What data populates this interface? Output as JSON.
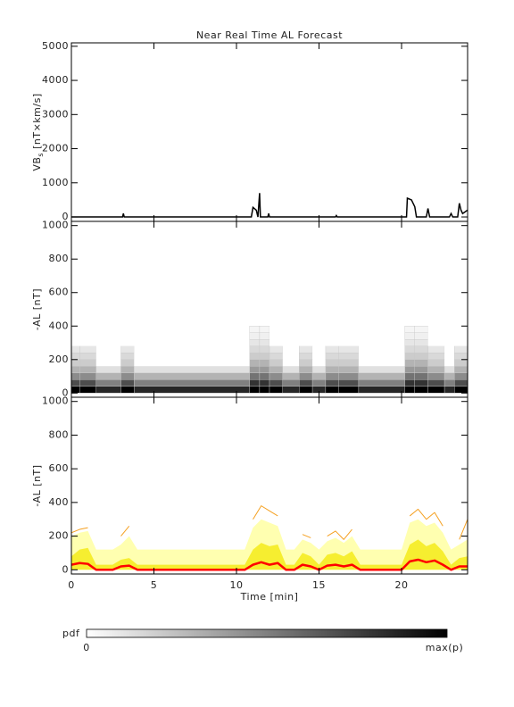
{
  "chart_data": [
    {
      "type": "line",
      "title": "Near Real Time AL Forecast",
      "ylabel": {
        "main": "VB",
        "sub": "s",
        "rest": " [nT×km/s]"
      },
      "xlim": [
        0,
        24
      ],
      "xticks": [
        0,
        5,
        10,
        15,
        20
      ],
      "ylim": [
        -130,
        5100
      ],
      "yticks": [
        0,
        1000,
        2000,
        3000,
        4000,
        5000
      ],
      "series": [
        {
          "color": "#000000",
          "x": [
            0,
            3.1,
            3.15,
            3.2,
            10.9,
            11,
            11.2,
            11.3,
            11.4,
            11.45,
            11.9,
            11.95,
            12.0,
            14.5,
            16.0,
            16.05,
            16.1,
            20.3,
            20.35,
            20.6,
            20.8,
            20.9,
            21.5,
            21.6,
            21.7,
            22.9,
            23.0,
            23.1,
            23.4,
            23.5,
            23.6,
            23.7,
            24
          ],
          "values": [
            0,
            0,
            100,
            0,
            0,
            280,
            200,
            0,
            700,
            0,
            0,
            100,
            0,
            0,
            0,
            40,
            0,
            0,
            550,
            500,
            300,
            0,
            0,
            250,
            0,
            0,
            100,
            0,
            0,
            400,
            200,
            100,
            200
          ]
        }
      ]
    },
    {
      "type": "heatmap",
      "ylabel": "-AL [nT]",
      "xlim": [
        0,
        24
      ],
      "xticks": [
        0,
        5,
        10,
        15,
        20
      ],
      "ylim": [
        -25,
        1025
      ],
      "yticks": [
        0,
        200,
        400,
        600,
        800,
        1000
      ],
      "x_edges": [
        0,
        0.5,
        1.5,
        3.0,
        3.8,
        10.8,
        11.4,
        12.0,
        12.8,
        13.8,
        14.6,
        15.4,
        16.2,
        17.4,
        20.2,
        20.8,
        21.6,
        22.6,
        23.2,
        24
      ],
      "y_edges": [
        0,
        40,
        80,
        120,
        160,
        200,
        240,
        280,
        320,
        360,
        400
      ],
      "z": [
        [
          1,
          0.7,
          0.45,
          0.3,
          0.2,
          0.15,
          0.1,
          0,
          0,
          0
        ],
        [
          1,
          0.7,
          0.45,
          0.3,
          0.2,
          0.15,
          0.1,
          0,
          0,
          0
        ],
        [
          0.85,
          0.5,
          0.3,
          0.12,
          0,
          0,
          0,
          0,
          0,
          0
        ],
        [
          1,
          0.7,
          0.45,
          0.3,
          0.2,
          0.15,
          0.1,
          0,
          0,
          0
        ],
        [
          0.85,
          0.5,
          0.3,
          0.12,
          0,
          0,
          0,
          0,
          0,
          0
        ],
        [
          1,
          0.8,
          0.55,
          0.4,
          0.3,
          0.2,
          0.15,
          0.1,
          0.06,
          0.04
        ],
        [
          1,
          0.8,
          0.55,
          0.4,
          0.3,
          0.2,
          0.15,
          0.1,
          0.06,
          0.04
        ],
        [
          1,
          0.7,
          0.45,
          0.3,
          0.2,
          0.15,
          0.1,
          0,
          0,
          0
        ],
        [
          0.85,
          0.5,
          0.3,
          0.12,
          0,
          0,
          0,
          0,
          0,
          0
        ],
        [
          1,
          0.7,
          0.45,
          0.3,
          0.2,
          0.15,
          0.1,
          0,
          0,
          0
        ],
        [
          0.85,
          0.5,
          0.3,
          0.12,
          0,
          0,
          0,
          0,
          0,
          0
        ],
        [
          1,
          0.7,
          0.45,
          0.3,
          0.2,
          0.15,
          0.1,
          0,
          0,
          0
        ],
        [
          1,
          0.7,
          0.45,
          0.3,
          0.2,
          0.15,
          0.1,
          0,
          0,
          0
        ],
        [
          0.85,
          0.5,
          0.3,
          0.12,
          0,
          0,
          0,
          0,
          0,
          0
        ],
        [
          1,
          0.8,
          0.55,
          0.4,
          0.3,
          0.2,
          0.15,
          0.1,
          0.06,
          0.04
        ],
        [
          1,
          0.8,
          0.55,
          0.4,
          0.3,
          0.2,
          0.15,
          0.1,
          0.06,
          0.04
        ],
        [
          1,
          0.7,
          0.45,
          0.3,
          0.2,
          0.15,
          0.1,
          0,
          0,
          0
        ],
        [
          0.85,
          0.5,
          0.3,
          0.12,
          0,
          0,
          0,
          0,
          0,
          0
        ],
        [
          1,
          0.7,
          0.45,
          0.3,
          0.2,
          0.15,
          0.1,
          0,
          0,
          0
        ]
      ]
    },
    {
      "type": "area",
      "ylabel": "-AL [nT]",
      "xlabel": "Time [min]",
      "xlim": [
        0,
        24
      ],
      "xticks": [
        0,
        5,
        10,
        15,
        20
      ],
      "ylim": [
        -25,
        1025
      ],
      "yticks": [
        0,
        200,
        400,
        600,
        800,
        1000
      ],
      "x": [
        0,
        0.5,
        1,
        1.5,
        2,
        2.5,
        3,
        3.5,
        4,
        4.5,
        5,
        5.5,
        6,
        6.5,
        7,
        7.5,
        8,
        8.5,
        9,
        9.5,
        10,
        10.5,
        11,
        11.5,
        12,
        12.5,
        13,
        13.5,
        14,
        14.5,
        15,
        15.5,
        16,
        16.5,
        17,
        17.5,
        18,
        18.5,
        19,
        19.5,
        20,
        20.5,
        21,
        21.5,
        22,
        22.5,
        23,
        23.5,
        24
      ],
      "series": [
        {
          "color": "#ffffb0",
          "fill": true,
          "values": [
            200,
            220,
            230,
            120,
            120,
            120,
            150,
            200,
            120,
            120,
            120,
            120,
            120,
            120,
            120,
            120,
            120,
            120,
            120,
            120,
            120,
            120,
            250,
            300,
            280,
            260,
            120,
            120,
            180,
            160,
            120,
            170,
            190,
            160,
            200,
            120,
            120,
            120,
            120,
            120,
            120,
            280,
            300,
            260,
            280,
            220,
            120,
            150,
            180
          ]
        },
        {
          "color": "#f6ee30",
          "fill": true,
          "values": [
            80,
            120,
            130,
            30,
            30,
            30,
            60,
            70,
            30,
            30,
            30,
            30,
            30,
            30,
            30,
            30,
            30,
            30,
            30,
            30,
            30,
            30,
            120,
            160,
            140,
            150,
            30,
            30,
            100,
            80,
            30,
            90,
            100,
            80,
            110,
            30,
            30,
            30,
            30,
            30,
            30,
            150,
            180,
            140,
            160,
            110,
            30,
            70,
            80
          ]
        },
        {
          "color": "#f5a020",
          "fill": false,
          "values": [
            220,
            240,
            250,
            null,
            null,
            null,
            200,
            260,
            null,
            null,
            null,
            null,
            null,
            null,
            null,
            null,
            null,
            null,
            null,
            null,
            null,
            null,
            300,
            380,
            350,
            320,
            null,
            null,
            210,
            190,
            null,
            200,
            230,
            180,
            240,
            null,
            null,
            null,
            null,
            null,
            null,
            320,
            360,
            300,
            340,
            260,
            null,
            180,
            300
          ]
        },
        {
          "color": "#ff0000",
          "fill": false,
          "line_width": 2.5,
          "values": [
            30,
            40,
            35,
            0,
            0,
            0,
            20,
            25,
            0,
            0,
            0,
            0,
            0,
            0,
            0,
            0,
            0,
            0,
            0,
            0,
            0,
            0,
            30,
            45,
            30,
            40,
            0,
            0,
            30,
            20,
            0,
            25,
            30,
            20,
            30,
            0,
            0,
            0,
            0,
            0,
            0,
            50,
            60,
            45,
            55,
            30,
            0,
            20,
            20
          ]
        }
      ]
    }
  ],
  "colorbar": {
    "label": "pdf",
    "min_label": "0",
    "max_label": "max(p)"
  }
}
